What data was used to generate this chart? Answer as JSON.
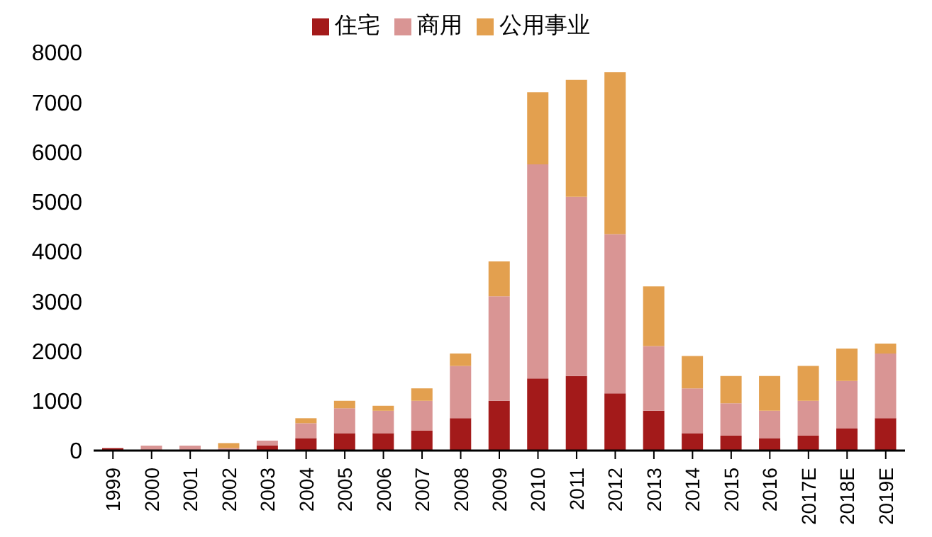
{
  "chart_data": {
    "type": "bar",
    "stacked": true,
    "legend": "top",
    "grid": false,
    "categories": [
      "1999",
      "2000",
      "2001",
      "2002",
      "2003",
      "2004",
      "2005",
      "2006",
      "2007",
      "2008",
      "2009",
      "2010",
      "2011",
      "2012",
      "2013",
      "2014",
      "2015",
      "2016",
      "2017E",
      "2018E",
      "2019E"
    ],
    "series": [
      {
        "name": "住宅",
        "color": "#a31a1a",
        "values": [
          50,
          null,
          null,
          null,
          100,
          250,
          350,
          350,
          400,
          650,
          1000,
          1450,
          1500,
          1150,
          800,
          350,
          300,
          250,
          300,
          450,
          650
        ]
      },
      {
        "name": "商用",
        "color": "#d99594",
        "values": [
          0,
          100,
          100,
          50,
          100,
          300,
          500,
          450,
          600,
          1050,
          2100,
          4300,
          3600,
          3200,
          1300,
          900,
          650,
          550,
          700,
          950,
          1300
        ]
      },
      {
        "name": "公用事业",
        "color": "#e3a04f",
        "values": [
          0,
          0,
          0,
          100,
          0,
          100,
          150,
          100,
          250,
          250,
          700,
          1450,
          2350,
          3250,
          1200,
          650,
          550,
          700,
          700,
          650,
          200
        ]
      }
    ],
    "ylim": [
      0,
      8000
    ],
    "yticks": [
      0,
      1000,
      2000,
      3000,
      4000,
      5000,
      6000,
      7000,
      8000
    ]
  }
}
